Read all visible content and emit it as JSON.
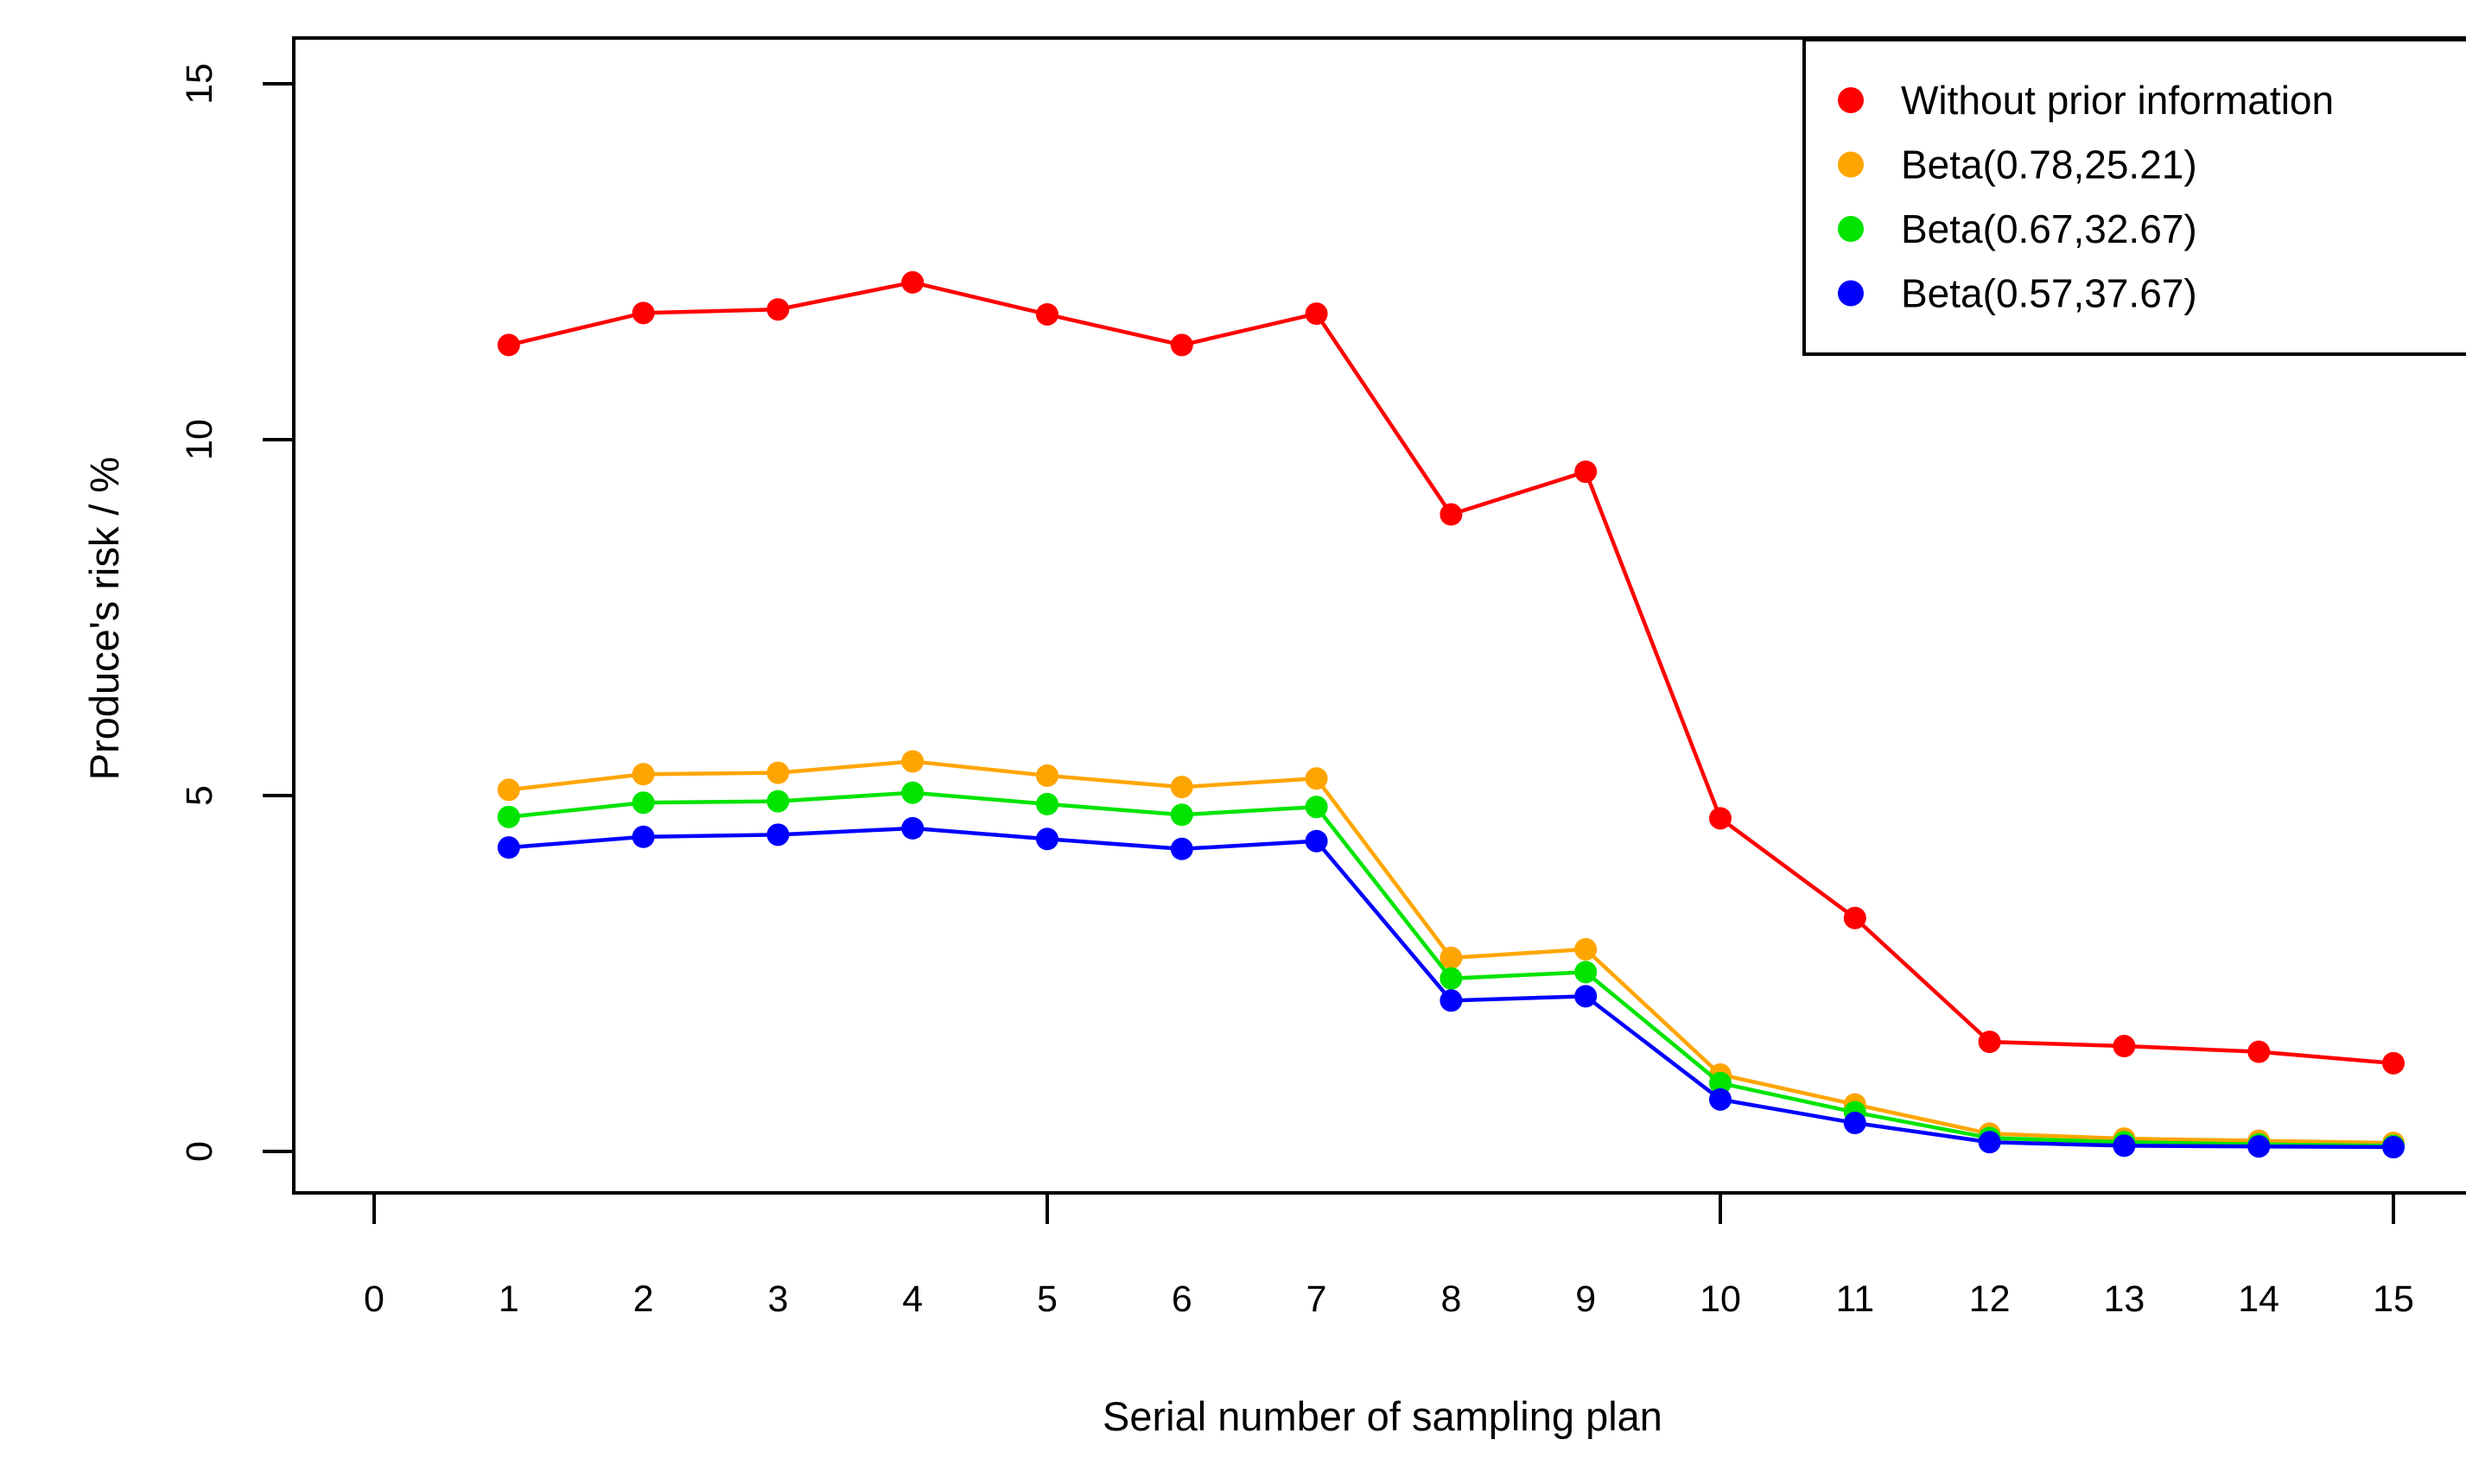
{
  "chart_data": {
    "type": "line",
    "title": "",
    "xlabel": "Serial number of sampling plan",
    "ylabel": "Produce's risk / %",
    "x": [
      1,
      2,
      3,
      4,
      5,
      6,
      7,
      8,
      9,
      10,
      11,
      12,
      13,
      14,
      15
    ],
    "x_tick_labels": [
      "0",
      "1",
      "2",
      "3",
      "4",
      "5",
      "6",
      "7",
      "8",
      "9",
      "10",
      "11",
      "12",
      "13",
      "14",
      "15"
    ],
    "x_major_tickmarks": [
      0,
      5,
      10,
      15
    ],
    "y_tick_labels": [
      "0",
      "5",
      "10",
      "15"
    ],
    "y_ticks": [
      0,
      5,
      10,
      15
    ],
    "xlim": [
      -0.6,
      15.6
    ],
    "ylim": [
      -0.6,
      15.6
    ],
    "grid": false,
    "marker": "filled-circle",
    "axis_color": "#000000",
    "background_color": "#ffffff",
    "legend_position": "top-right",
    "series": [
      {
        "name": "Without prior information",
        "color": "#ff0000",
        "values": [
          11.33,
          11.78,
          11.83,
          12.21,
          11.76,
          11.33,
          11.77,
          8.95,
          9.55,
          4.68,
          3.28,
          1.54,
          1.48,
          1.4,
          1.24
        ]
      },
      {
        "name": "Beta(0.78,25.21)",
        "color": "#ffa500",
        "values": [
          5.08,
          5.3,
          5.32,
          5.48,
          5.28,
          5.12,
          5.24,
          2.72,
          2.84,
          1.08,
          0.66,
          0.25,
          0.18,
          0.15,
          0.12
        ]
      },
      {
        "name": "Beta(0.67,32.67)",
        "color": "#00e400",
        "values": [
          4.7,
          4.9,
          4.92,
          5.04,
          4.88,
          4.73,
          4.84,
          2.43,
          2.52,
          0.96,
          0.55,
          0.19,
          0.13,
          0.1,
          0.08
        ]
      },
      {
        "name": "Beta(0.57,37.67)",
        "color": "#0000ff",
        "values": [
          4.27,
          4.42,
          4.45,
          4.54,
          4.39,
          4.25,
          4.36,
          2.12,
          2.18,
          0.73,
          0.4,
          0.13,
          0.08,
          0.07,
          0.06
        ]
      }
    ]
  }
}
